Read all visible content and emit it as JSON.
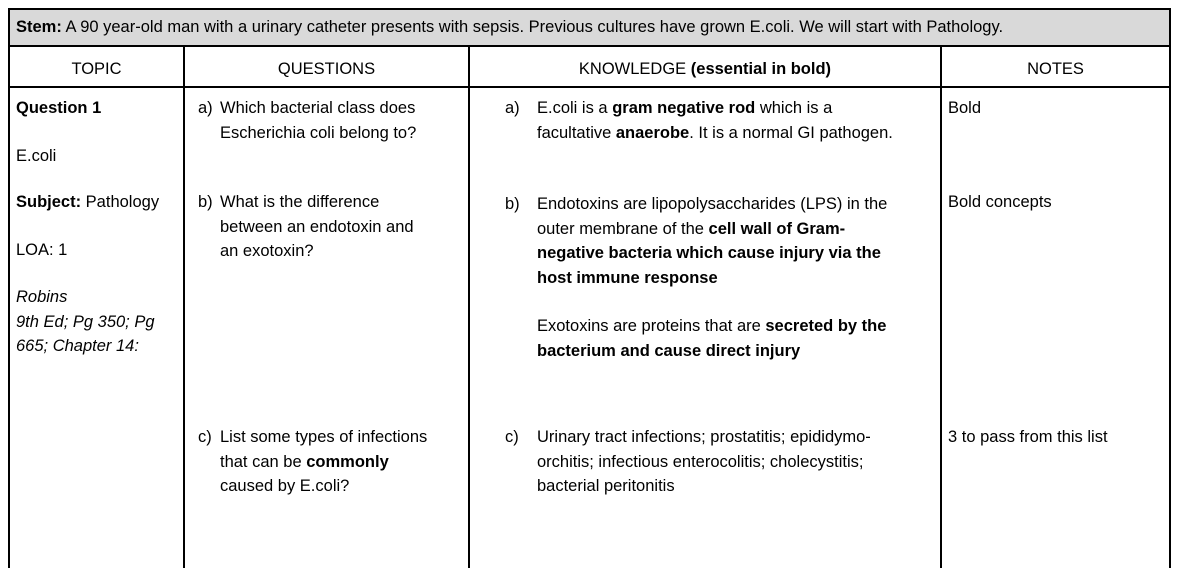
{
  "stem": {
    "label": "Stem:",
    "text": " A 90 year-old man with a urinary catheter presents with sepsis. Previous cultures have grown E.coli.  We will start with Pathology."
  },
  "headers": {
    "topic": "TOPIC",
    "questions": "QUESTIONS",
    "knowledge_prefix": "KNOWLEDGE ",
    "knowledge_bold": "(essential in bold)",
    "notes": "NOTES"
  },
  "topic": {
    "question_label": "Question 1",
    "organism": "E.coli",
    "subject_label": "Subject:",
    "subject_value": " Pathology",
    "loa": "LOA: 1",
    "ref_title": "Robins",
    "ref_line1": "9th Ed; Pg 350; Pg",
    "ref_line2": "665; Chapter 14:"
  },
  "questions": {
    "a_label": "a)",
    "a_line1": "Which bacterial class does",
    "a_line2": "Escherichia coli belong to?",
    "b_label": "b)",
    "b_line1": "What is the difference",
    "b_line2": "between an endotoxin and",
    "b_line3": "an exotoxin?",
    "c_label": "c)",
    "c_line1": "List some types of infections",
    "c_line2_pre": "that can be ",
    "c_line2_bold": "commonly",
    "c_line3": "caused by E.coli?"
  },
  "knowledge": {
    "a_label": "a)",
    "a_l1_pre": "E.coli is a ",
    "a_l1_bold": "gram negative rod",
    "a_l1_post": " which is a",
    "a_l2_pre": "facultative ",
    "a_l2_bold": "anaerobe",
    "a_l2_post": ". It is a normal GI pathogen.",
    "b_label": "b)",
    "b_l1": "Endotoxins are lipopolysaccharides (LPS) in the",
    "b_l2_pre": "outer membrane of the ",
    "b_l2_bold": "cell wall of Gram-",
    "b_l3": "negative bacteria which cause injury via the",
    "b_l4": "host immune response",
    "b2_l1_pre": "Exotoxins are proteins that are ",
    "b2_l1_bold": "secreted by the",
    "b2_l2": "bacterium and cause direct injury",
    "c_label": "c)",
    "c_l1": "Urinary tract infections; prostatitis; epididymo-",
    "c_l2": "orchitis; infectious enterocolitis; cholecystitis;",
    "c_l3": "bacterial peritonitis"
  },
  "notes": {
    "a": "Bold",
    "b": "Bold concepts",
    "c": "3 to pass from this list"
  }
}
